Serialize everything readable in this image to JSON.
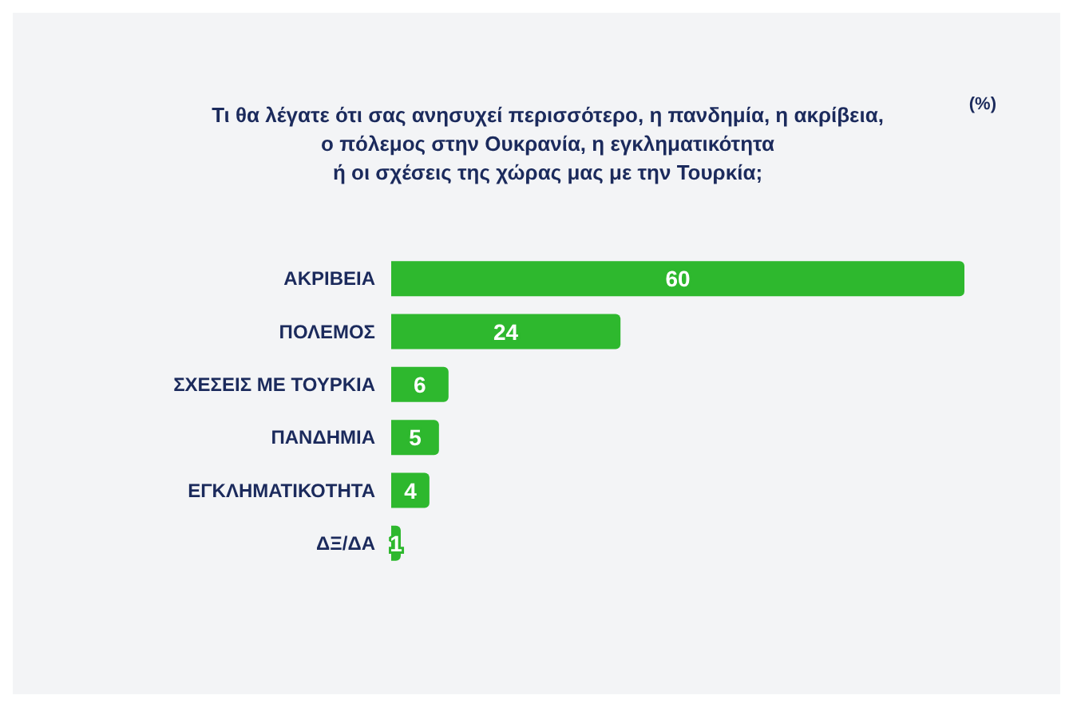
{
  "chart_data": {
    "type": "bar",
    "orientation": "horizontal",
    "title": "Τι θα λέγατε ότι σας ανησυχεί περισσότερο, η πανδημία, η ακρίβεια,\nο πόλεμος στην Ουκρανία, η εγκληματικότητα\nή οι σχέσεις της χώρας μας με την Τουρκία;",
    "annotations": [
      "(%)"
    ],
    "categories": [
      "ΑΚΡΙΒΕΙΑ",
      "ΠΟΛΕΜΟΣ",
      "ΣΧΕΣΕΙΣ ΜΕ ΤΟΥΡΚΙΑ",
      "ΠΑΝΔΗΜΙΑ",
      "ΕΓΚΛΗΜΑΤΙΚΟΤΗΤΑ",
      "ΔΞ/ΔΑ"
    ],
    "values": [
      60,
      24,
      6,
      5,
      4,
      1
    ],
    "color": "#2eb82e",
    "data_labels": true
  }
}
